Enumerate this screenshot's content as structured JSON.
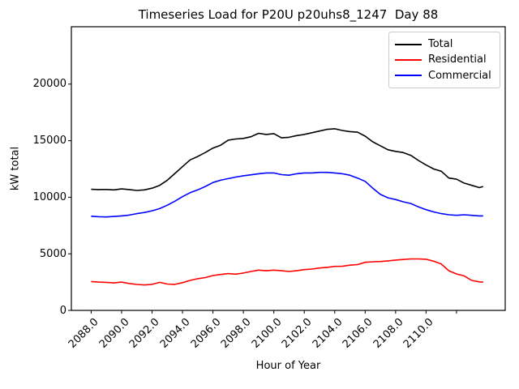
{
  "title": "Timeseries Load for P20U p20uhs8_1247  Day 88",
  "chart_data": {
    "type": "line",
    "title": "Timeseries Load for P20U p20uhs8_1247  Day 88",
    "xlabel": "Hour of Year",
    "ylabel": "kW total",
    "xlim": [
      2086.7,
      2115.2
    ],
    "ylim": [
      0,
      25070
    ],
    "grid": false,
    "legend_position": "upper right",
    "x_ticks": {
      "values": [
        2088,
        2090,
        2092,
        2094,
        2096,
        2098,
        2100,
        2102,
        2104,
        2106,
        2108,
        2110,
        2112
      ],
      "labels": [
        "2088.0",
        "2090.0",
        "2092.0",
        "2094.0",
        "2096.0",
        "2098.0",
        "2100.0",
        "2102.0",
        "2104.0",
        "2106.0",
        "2108.0",
        "2110.0",
        ""
      ]
    },
    "y_ticks": {
      "values": [
        0,
        5000,
        10000,
        15000,
        20000
      ],
      "labels": [
        "0",
        "5000",
        "10000",
        "15000",
        "20000"
      ]
    },
    "legend": {
      "entries": [
        {
          "label": "Total",
          "color": "#000000"
        },
        {
          "label": "Residential",
          "color": "#ff0000"
        },
        {
          "label": "Commercial",
          "color": "#0000ff"
        }
      ]
    },
    "x": [
      2088.0,
      2088.5,
      2089.0,
      2089.5,
      2090.0,
      2090.5,
      2091.0,
      2091.5,
      2092.0,
      2092.5,
      2093.0,
      2093.5,
      2094.0,
      2094.5,
      2095.0,
      2095.5,
      2096.0,
      2096.5,
      2097.0,
      2097.5,
      2098.0,
      2098.5,
      2099.0,
      2099.5,
      2100.0,
      2100.5,
      2101.0,
      2101.5,
      2102.0,
      2102.5,
      2103.0,
      2103.5,
      2104.0,
      2104.5,
      2105.0,
      2105.5,
      2106.0,
      2106.5,
      2107.0,
      2107.5,
      2108.0,
      2108.5,
      2109.0,
      2109.5,
      2110.0,
      2110.5,
      2111.0,
      2111.5,
      2112.0,
      2112.5,
      2113.0,
      2113.5,
      2113.75
    ],
    "series": [
      {
        "name": "Total",
        "color": "#000000",
        "values": [
          10700,
          10680,
          10690,
          10650,
          10740,
          10680,
          10600,
          10650,
          10800,
          11050,
          11500,
          12100,
          12700,
          13300,
          13600,
          13950,
          14350,
          14600,
          15050,
          15150,
          15200,
          15350,
          15650,
          15550,
          15620,
          15250,
          15300,
          15450,
          15550,
          15700,
          15850,
          16000,
          16050,
          15900,
          15800,
          15750,
          15400,
          14900,
          14550,
          14200,
          14050,
          13950,
          13700,
          13250,
          12850,
          12500,
          12300,
          11700,
          11600,
          11250,
          11050,
          10850,
          10950
        ]
      },
      {
        "name": "Residential",
        "color": "#ff0000",
        "values": [
          2550,
          2500,
          2480,
          2430,
          2500,
          2380,
          2290,
          2250,
          2300,
          2480,
          2330,
          2300,
          2450,
          2650,
          2800,
          2900,
          3080,
          3170,
          3250,
          3200,
          3300,
          3440,
          3560,
          3500,
          3560,
          3500,
          3440,
          3500,
          3600,
          3650,
          3745,
          3800,
          3890,
          3900,
          4000,
          4050,
          4250,
          4300,
          4320,
          4380,
          4450,
          4500,
          4550,
          4550,
          4520,
          4350,
          4100,
          3500,
          3220,
          3050,
          2650,
          2520,
          2500
        ]
      },
      {
        "name": "Commercial",
        "color": "#0000ff",
        "values": [
          8320,
          8280,
          8260,
          8300,
          8350,
          8420,
          8550,
          8650,
          8800,
          9000,
          9300,
          9650,
          10050,
          10400,
          10650,
          10950,
          11300,
          11500,
          11650,
          11780,
          11900,
          11980,
          12080,
          12150,
          12150,
          12000,
          11950,
          12080,
          12150,
          12150,
          12200,
          12200,
          12150,
          12080,
          11950,
          11700,
          11400,
          10800,
          10250,
          9950,
          9800,
          9600,
          9450,
          9150,
          8900,
          8700,
          8550,
          8450,
          8400,
          8450,
          8400,
          8350,
          8350
        ]
      }
    ]
  }
}
